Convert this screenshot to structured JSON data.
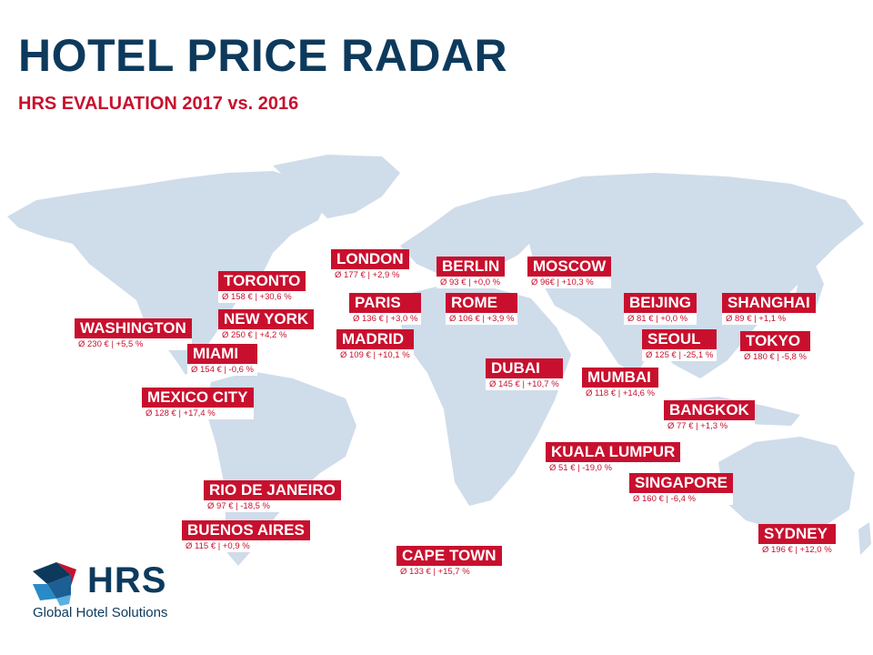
{
  "header": {
    "title": "HOTEL PRICE RADAR",
    "subtitle": "HRS EVALUATION 2017 vs. 2016"
  },
  "colors": {
    "title": "#0d3a5c",
    "accent": "#c8102e",
    "land": "#cfdcea"
  },
  "cities": [
    {
      "name": "LONDON",
      "stat": "Ø 177 € | +2,9 %"
    },
    {
      "name": "BERLIN",
      "stat": "Ø 93 € | +0,0 %"
    },
    {
      "name": "MOSCOW",
      "stat": "Ø 96€ | +10,3 %"
    },
    {
      "name": "TORONTO",
      "stat": "Ø 158 € | +30,6 %"
    },
    {
      "name": "PARIS",
      "stat": "Ø 136 € | +3,0 %"
    },
    {
      "name": "ROME",
      "stat": "Ø 106 € | +3,9 %"
    },
    {
      "name": "BEIJING",
      "stat": "Ø 81 € | +0,0 %"
    },
    {
      "name": "SHANGHAI",
      "stat": "Ø 89 € | +1,1 %"
    },
    {
      "name": "WASHINGTON",
      "stat": "Ø 230 € | +5,5 %"
    },
    {
      "name": "NEW YORK",
      "stat": "Ø 250 € | +4,2 %"
    },
    {
      "name": "MADRID",
      "stat": "Ø 109 € | +10,1 %"
    },
    {
      "name": "SEOUL",
      "stat": "Ø 125 € | -25,1 %"
    },
    {
      "name": "TOKYO",
      "stat": "Ø 180 € | -5,8 %"
    },
    {
      "name": "MIAMI",
      "stat": "Ø 154 € | -0,6 %"
    },
    {
      "name": "DUBAI",
      "stat": "Ø 145 € | +10,7 %"
    },
    {
      "name": "MUMBAI",
      "stat": "Ø 118 € | +14,6 %"
    },
    {
      "name": "MEXICO CITY",
      "stat": "Ø 128 € | +17,4 %"
    },
    {
      "name": "BANGKOK",
      "stat": "Ø 77 € | +1,3 %"
    },
    {
      "name": "KUALA LUMPUR",
      "stat": "Ø 51 € | -19,0 %"
    },
    {
      "name": "SINGAPORE",
      "stat": "Ø 160 € | -6,4 %"
    },
    {
      "name": "RIO DE JANEIRO",
      "stat": "Ø 97 € | -18,5 %"
    },
    {
      "name": "BUENOS AIRES",
      "stat": "Ø 115 € | +0,9 %"
    },
    {
      "name": "CAPE TOWN",
      "stat": "Ø 133 € | +15,7 %"
    },
    {
      "name": "SYDNEY",
      "stat": "Ø 196 € | +12,0 %"
    }
  ],
  "logo": {
    "wordmark": "HRS",
    "tagline": "Global Hotel Solutions"
  }
}
